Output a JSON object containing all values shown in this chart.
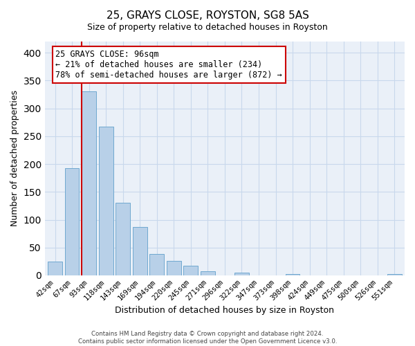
{
  "title": "25, GRAYS CLOSE, ROYSTON, SG8 5AS",
  "subtitle": "Size of property relative to detached houses in Royston",
  "xlabel": "Distribution of detached houses by size in Royston",
  "ylabel": "Number of detached properties",
  "bar_labels": [
    "42sqm",
    "67sqm",
    "93sqm",
    "118sqm",
    "143sqm",
    "169sqm",
    "194sqm",
    "220sqm",
    "245sqm",
    "271sqm",
    "296sqm",
    "322sqm",
    "347sqm",
    "373sqm",
    "398sqm",
    "424sqm",
    "449sqm",
    "475sqm",
    "500sqm",
    "526sqm",
    "551sqm"
  ],
  "bar_values": [
    25,
    193,
    330,
    267,
    130,
    87,
    38,
    26,
    17,
    8,
    0,
    5,
    0,
    0,
    3,
    0,
    0,
    0,
    0,
    0,
    3
  ],
  "bar_color": "#b8d0e8",
  "bar_edge_color": "#6fa8d0",
  "ylim": [
    0,
    420
  ],
  "yticks": [
    0,
    50,
    100,
    150,
    200,
    250,
    300,
    350,
    400
  ],
  "property_line_bar_index": 2,
  "property_line_color": "#cc0000",
  "annotation_line1": "25 GRAYS CLOSE: 96sqm",
  "annotation_line2": "← 21% of detached houses are smaller (234)",
  "annotation_line3": "78% of semi-detached houses are larger (872) →",
  "footer_line1": "Contains HM Land Registry data © Crown copyright and database right 2024.",
  "footer_line2": "Contains public sector information licensed under the Open Government Licence v3.0.",
  "grid_color": "#c8d8ec",
  "background_color": "#eaf0f8"
}
